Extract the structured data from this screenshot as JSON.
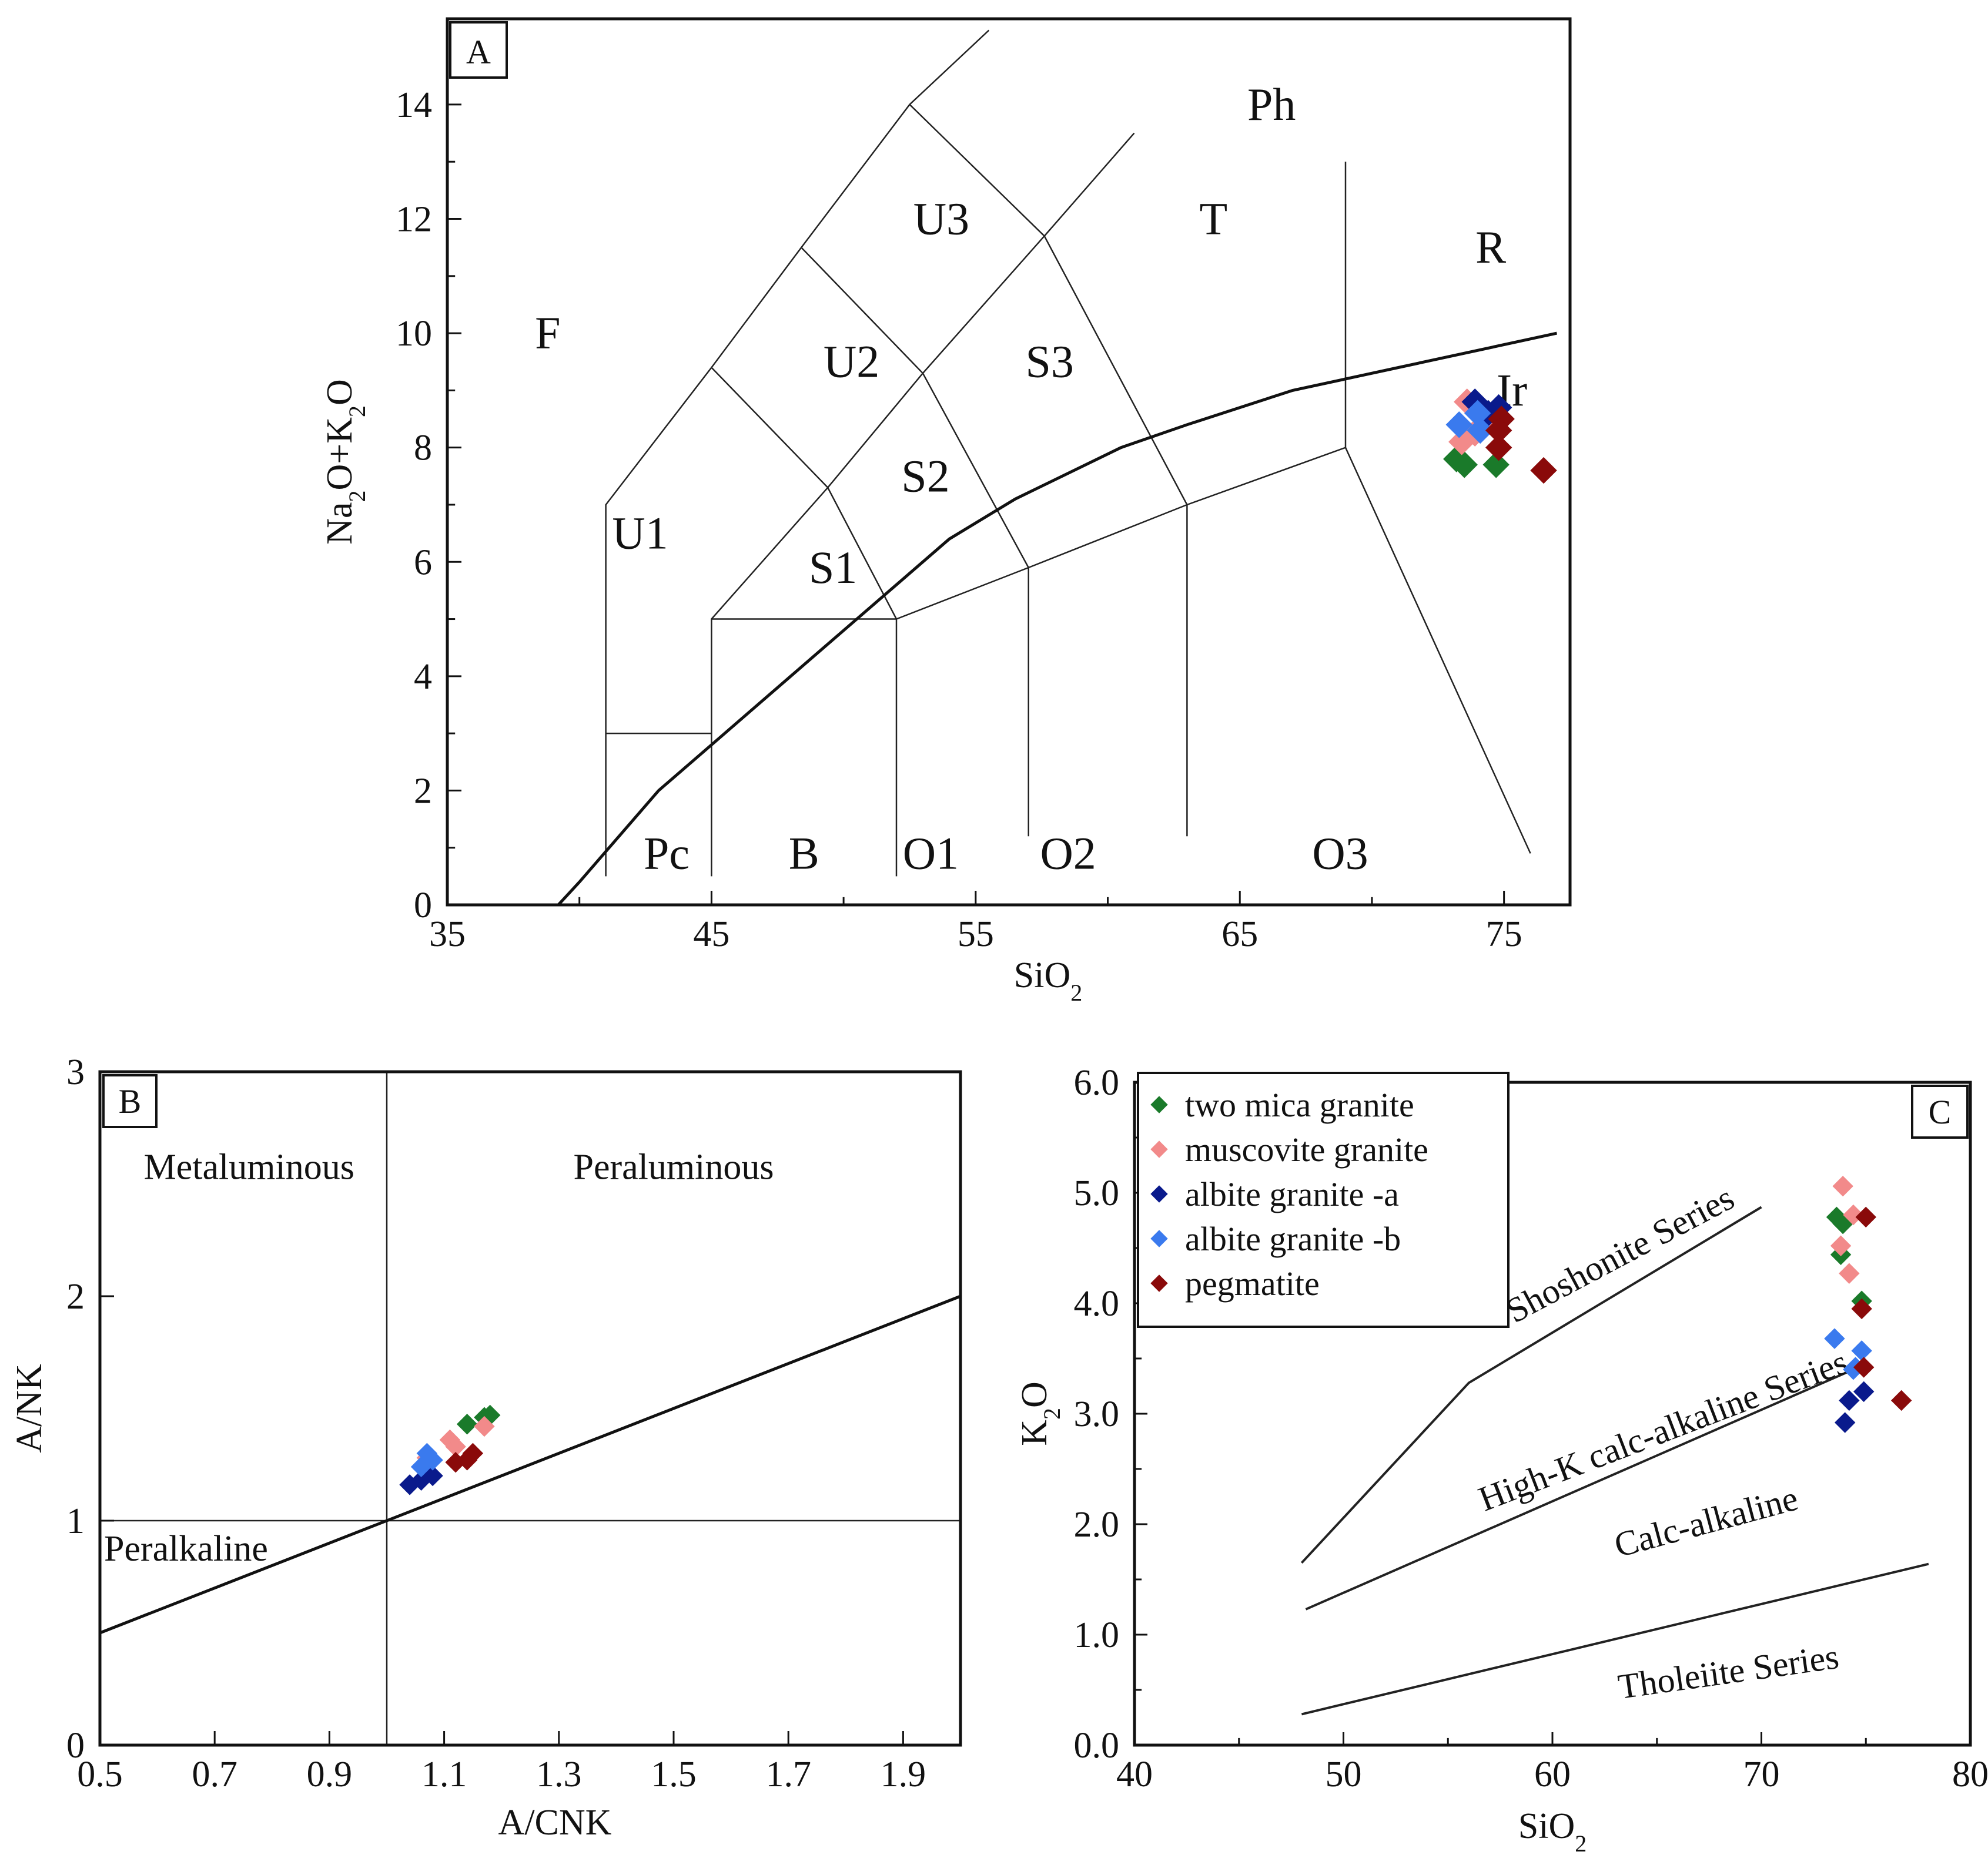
{
  "colors": {
    "two_mica_granite": "#1a7a2a",
    "muscovite_granite": "#f28a8a",
    "albite_granite_a": "#0a1a8c",
    "albite_granite_b": "#3a7aee",
    "pegmatite": "#8a0a0a"
  },
  "chart_data": [
    {
      "panel": "A",
      "type": "scatter",
      "title": "",
      "xlabel": "SiO₂",
      "ylabel": "Na₂O+K₂O",
      "xlim": [
        35,
        77.5
      ],
      "ylim": [
        0,
        15.5
      ],
      "xticks": [
        35,
        45,
        55,
        65,
        75
      ],
      "yticks": [
        0,
        2,
        4,
        6,
        8,
        10,
        12,
        14
      ],
      "field_labels": [
        {
          "text": "Ph",
          "x": 66.2,
          "y": 14.0
        },
        {
          "text": "U3",
          "x": 53.7,
          "y": 12.0
        },
        {
          "text": "T",
          "x": 64.0,
          "y": 12.0
        },
        {
          "text": "R",
          "x": 74.5,
          "y": 11.5
        },
        {
          "text": "F",
          "x": 38.8,
          "y": 10.0
        },
        {
          "text": "U2",
          "x": 50.3,
          "y": 9.5
        },
        {
          "text": "S3",
          "x": 57.8,
          "y": 9.5
        },
        {
          "text": "Ir",
          "x": 75.3,
          "y": 9.0
        },
        {
          "text": "S2",
          "x": 53.1,
          "y": 7.5
        },
        {
          "text": "U1",
          "x": 42.3,
          "y": 6.5
        },
        {
          "text": "S1",
          "x": 49.6,
          "y": 5.9
        },
        {
          "text": "Pc",
          "x": 43.3,
          "y": 0.9
        },
        {
          "text": "B",
          "x": 48.5,
          "y": 0.9
        },
        {
          "text": "O1",
          "x": 53.3,
          "y": 0.9
        },
        {
          "text": "O2",
          "x": 58.5,
          "y": 0.9
        },
        {
          "text": "O3",
          "x": 68.8,
          "y": 0.9
        }
      ],
      "field_lines": [
        [
          [
            41,
            0.5
          ],
          [
            41,
            7.0
          ],
          [
            45,
            9.4
          ],
          [
            48.4,
            11.5
          ],
          [
            52.5,
            14.0
          ],
          [
            55.5,
            15.3
          ]
        ],
        [
          [
            41,
            3.0
          ],
          [
            45,
            3.0
          ]
        ],
        [
          [
            45,
            0.5
          ],
          [
            45,
            5.0
          ],
          [
            49.4,
            7.3
          ],
          [
            53,
            9.3
          ],
          [
            57.6,
            11.7
          ],
          [
            61,
            13.5
          ]
        ],
        [
          [
            45,
            5.0
          ],
          [
            52,
            5.0
          ],
          [
            57,
            5.9
          ],
          [
            63,
            7.0
          ],
          [
            69,
            8.0
          ]
        ],
        [
          [
            52,
            0.5
          ],
          [
            52,
            5.0
          ]
        ],
        [
          [
            57,
            1.2
          ],
          [
            57,
            5.9
          ]
        ],
        [
          [
            63,
            1.2
          ],
          [
            63,
            7.0
          ]
        ],
        [
          [
            69,
            8.0
          ],
          [
            69,
            13.0
          ]
        ],
        [
          [
            69,
            8.0
          ],
          [
            76,
            0.9
          ]
        ],
        [
          [
            45,
            9.4
          ],
          [
            49.4,
            7.3
          ],
          [
            52,
            5.0
          ]
        ],
        [
          [
            48.4,
            11.5
          ],
          [
            53,
            9.3
          ],
          [
            57,
            5.9
          ]
        ],
        [
          [
            52.5,
            14.0
          ],
          [
            57.6,
            11.7
          ],
          [
            63,
            7.0
          ]
        ]
      ],
      "alkaline_boundary": [
        [
          39.2,
          0
        ],
        [
          40,
          0.4
        ],
        [
          43,
          2.0
        ],
        [
          45,
          2.8
        ],
        [
          48,
          4.0
        ],
        [
          50,
          4.8
        ],
        [
          52,
          5.6
        ],
        [
          54,
          6.4
        ],
        [
          56.5,
          7.1
        ],
        [
          60.5,
          8.0
        ],
        [
          63,
          8.4
        ],
        [
          67,
          9.0
        ],
        [
          71,
          9.4
        ],
        [
          77,
          10.0
        ]
      ],
      "series": [
        {
          "name": "two mica granite",
          "color_key": "two_mica_granite",
          "points": [
            [
              73.2,
              7.8
            ],
            [
              73.5,
              7.7
            ],
            [
              74.7,
              7.7
            ]
          ]
        },
        {
          "name": "muscovite granite",
          "color_key": "muscovite_granite",
          "points": [
            [
              73.6,
              8.8
            ],
            [
              73.4,
              8.1
            ],
            [
              73.9,
              8.25
            ],
            [
              74.2,
              8.4
            ]
          ]
        },
        {
          "name": "albite granite -a",
          "color_key": "albite_granite_a",
          "points": [
            [
              73.9,
              8.8
            ],
            [
              74.8,
              8.7
            ],
            [
              74.4,
              8.6
            ]
          ]
        },
        {
          "name": "albite granite -b",
          "color_key": "albite_granite_b",
          "points": [
            [
              73.3,
              8.4
            ],
            [
              74.0,
              8.6
            ],
            [
              74.1,
              8.3
            ]
          ]
        },
        {
          "name": "pegmatite",
          "color_key": "pegmatite",
          "points": [
            [
              74.9,
              8.5
            ],
            [
              74.8,
              8.3
            ],
            [
              74.8,
              8.0
            ],
            [
              76.5,
              7.6
            ]
          ]
        }
      ]
    },
    {
      "panel": "B",
      "type": "scatter",
      "title": "",
      "xlabel": "A/CNK",
      "ylabel": "A/NK",
      "xlim": [
        0.5,
        2.0
      ],
      "ylim": [
        0,
        3
      ],
      "xticks": [
        0.5,
        0.7,
        0.9,
        1.1,
        1.3,
        1.5,
        1.7,
        1.9
      ],
      "yticks": [
        0,
        1,
        2,
        3
      ],
      "field_labels": [
        {
          "text": "Metaluminous",
          "x": 0.76,
          "y": 2.58
        },
        {
          "text": "Peraluminous",
          "x": 1.5,
          "y": 2.58
        },
        {
          "text": "Peralkaline",
          "x": 0.65,
          "y": 0.88
        }
      ],
      "vertical_line_x": 1.0,
      "horizontal_line_y": 1.0,
      "diagonal_line": [
        [
          0.5,
          0.5
        ],
        [
          2.0,
          2.0
        ]
      ],
      "series": [
        {
          "name": "two mica granite",
          "color_key": "two_mica_granite",
          "points": [
            [
              1.14,
              1.43
            ],
            [
              1.17,
              1.46
            ],
            [
              1.18,
              1.47
            ]
          ]
        },
        {
          "name": "muscovite granite",
          "color_key": "muscovite_granite",
          "points": [
            [
              1.07,
              1.28
            ],
            [
              1.11,
              1.36
            ],
            [
              1.12,
              1.33
            ],
            [
              1.17,
              1.42
            ]
          ]
        },
        {
          "name": "albite granite -a",
          "color_key": "albite_granite_a",
          "points": [
            [
              1.04,
              1.16
            ],
            [
              1.06,
              1.18
            ],
            [
              1.08,
              1.2
            ]
          ]
        },
        {
          "name": "albite granite -b",
          "color_key": "albite_granite_b",
          "points": [
            [
              1.06,
              1.24
            ],
            [
              1.07,
              1.3
            ],
            [
              1.08,
              1.27
            ]
          ]
        },
        {
          "name": "pegmatite",
          "color_key": "pegmatite",
          "points": [
            [
              1.12,
              1.26
            ],
            [
              1.14,
              1.27
            ],
            [
              1.15,
              1.3
            ]
          ]
        }
      ]
    },
    {
      "panel": "C",
      "type": "scatter",
      "title": "",
      "xlabel": "SiO₂",
      "ylabel": "K₂O",
      "xlim": [
        40,
        80
      ],
      "ylim": [
        0,
        6.0
      ],
      "xticks": [
        40,
        50,
        60,
        70,
        80
      ],
      "yticks": [
        0.0,
        1.0,
        2.0,
        3.0,
        4.0,
        5.0,
        6.0
      ],
      "ytick_labels": [
        "0.0",
        "1.0",
        "2.0",
        "3.0",
        "4.0",
        "5.0",
        "6.0"
      ],
      "series_boundaries": [
        [
          [
            48,
            1.65
          ],
          [
            56,
            3.28
          ],
          [
            70,
            4.87
          ]
        ],
        [
          [
            48.2,
            1.23
          ],
          [
            75,
            3.45
          ]
        ],
        [
          [
            48,
            0.28
          ],
          [
            78,
            1.64
          ]
        ]
      ],
      "series_labels": [
        {
          "text": "Shoshonite Series",
          "x": 63.5,
          "y": 4.35,
          "angle": -28
        },
        {
          "text": "High-K calc-alkaline Series",
          "x": 65.5,
          "y": 2.75,
          "angle": -21
        },
        {
          "text": "Calc-alkaline",
          "x": 67.5,
          "y": 1.92,
          "angle": -15
        },
        {
          "text": "Tholeiite Series",
          "x": 68.5,
          "y": 0.56,
          "angle": -8
        }
      ],
      "legend": [
        {
          "label": "two mica granite",
          "color_key": "two_mica_granite"
        },
        {
          "label": "muscovite granite",
          "color_key": "muscovite_granite"
        },
        {
          "label": "albite granite -a",
          "color_key": "albite_granite_a"
        },
        {
          "label": "albite granite -b",
          "color_key": "albite_granite_b"
        },
        {
          "label": "pegmatite",
          "color_key": "pegmatite"
        }
      ],
      "series": [
        {
          "name": "two mica granite",
          "color_key": "two_mica_granite",
          "points": [
            [
              73.6,
              4.78
            ],
            [
              73.9,
              4.72
            ],
            [
              73.8,
              4.44
            ],
            [
              74.8,
              4.02
            ]
          ]
        },
        {
          "name": "muscovite granite",
          "color_key": "muscovite_granite",
          "points": [
            [
              73.9,
              5.06
            ],
            [
              74.4,
              4.8
            ],
            [
              73.8,
              4.52
            ],
            [
              74.2,
              4.27
            ]
          ]
        },
        {
          "name": "albite granite -a",
          "color_key": "albite_granite_a",
          "points": [
            [
              74.2,
              3.12
            ],
            [
              74.9,
              3.2
            ],
            [
              74.0,
              2.92
            ]
          ]
        },
        {
          "name": "albite granite -b",
          "color_key": "albite_granite_b",
          "points": [
            [
              73.5,
              3.68
            ],
            [
              74.8,
              3.57
            ],
            [
              74.5,
              3.42
            ],
            [
              74.4,
              3.4
            ]
          ]
        },
        {
          "name": "pegmatite",
          "color_key": "pegmatite",
          "points": [
            [
              75.0,
              4.78
            ],
            [
              74.8,
              3.95
            ],
            [
              74.9,
              3.42
            ],
            [
              76.7,
              3.12
            ]
          ]
        }
      ]
    }
  ]
}
